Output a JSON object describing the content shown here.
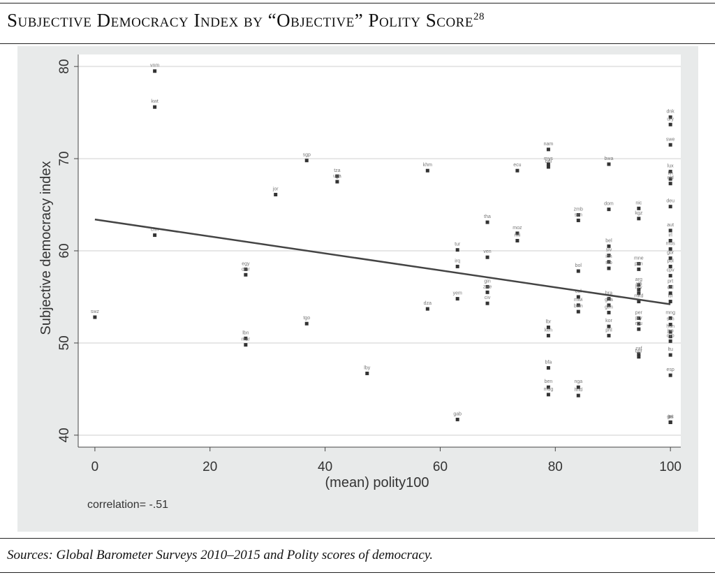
{
  "chart_data": {
    "type": "scatter",
    "title": "Subjective Democracy Index by “Objective” Polity Score",
    "footnote_mark": "28",
    "xlabel": "(mean) polity100",
    "ylabel": "Subjective democracy index",
    "annotation": "correlation= -.51",
    "source": "Sources: Global Barometer Surveys 2010–2015 and Polity scores of democracy.",
    "xlim": [
      -2.9,
      101.8
    ],
    "ylim": [
      38.7,
      81.3
    ],
    "xticks": [
      0,
      20,
      40,
      60,
      80,
      100
    ],
    "yticks": [
      40,
      50,
      60,
      70,
      80
    ],
    "grid": true,
    "color": "#333333",
    "fit": {
      "x": [
        0,
        100
      ],
      "values": [
        63.4,
        54.2
      ],
      "color": "#444444"
    },
    "labels": [
      "vnm",
      "kwt",
      "chn",
      "swz",
      "sgp",
      "tza",
      "uga",
      "jor",
      "khm",
      "egy",
      "cmr",
      "tgo",
      "lbn",
      "mar",
      "lby",
      "gab",
      "dza",
      "yem",
      "tur",
      "irq",
      "tha",
      "ven",
      "gin",
      "zwe",
      "civ",
      "moz",
      "mli",
      "ecu",
      "mys",
      "bdi",
      "nam",
      "lbr",
      "ken",
      "bfa",
      "ben",
      "mdg",
      "zmb",
      "sen",
      "bol",
      "col",
      "mwi",
      "bwn",
      "nga",
      "hnd",
      "bwa",
      "dom",
      "bel",
      "slv",
      "idn",
      "srb",
      "bra",
      "gha",
      "gtm",
      "kor",
      "phl",
      "nic",
      "kgz",
      "mne",
      "pan",
      "arg",
      "alb",
      "hrv",
      "mkd",
      "per",
      "pry",
      "rou",
      "zaf",
      "bgr",
      "dnk",
      "ury",
      "swe",
      "lux",
      "fin",
      "nld",
      "deu",
      "aut",
      "irl",
      "mus",
      "gbr",
      "pol",
      "cpv",
      "prt",
      "chl",
      "isr",
      "mng",
      "svn",
      "hun",
      "jpn",
      "cyp",
      "ltu",
      "esp",
      "cri",
      "ita",
      "grc"
    ],
    "x": [
      10.4,
      10.4,
      10.4,
      0,
      36.8,
      42.1,
      42.1,
      31.4,
      57.8,
      26.2,
      26.2,
      36.8,
      26.2,
      26.2,
      47.3,
      63.0,
      57.8,
      63.0,
      63.0,
      63.0,
      68.2,
      68.2,
      68.2,
      68.2,
      68.2,
      73.4,
      73.4,
      73.4,
      78.8,
      78.8,
      78.8,
      78.8,
      78.8,
      78.8,
      78.8,
      78.8,
      84.0,
      84.0,
      84.0,
      84.0,
      84.0,
      84.0,
      84.0,
      84.0,
      89.3,
      89.3,
      89.3,
      89.3,
      89.3,
      89.3,
      89.3,
      89.3,
      89.3,
      89.3,
      89.3,
      94.5,
      94.5,
      94.5,
      94.5,
      94.5,
      94.5,
      94.5,
      94.5,
      94.5,
      94.5,
      94.5,
      94.5,
      94.5,
      100,
      100,
      100,
      100,
      100,
      100,
      100,
      100,
      100,
      100,
      100,
      100,
      100,
      100,
      100,
      100,
      100,
      100,
      100,
      100,
      100,
      100,
      100,
      100,
      100,
      100
    ],
    "values": [
      79.5,
      75.6,
      61.7,
      52.8,
      69.8,
      68.1,
      67.5,
      66.1,
      68.7,
      58.0,
      57.4,
      52.1,
      50.5,
      49.8,
      46.7,
      41.7,
      53.7,
      54.8,
      60.1,
      58.3,
      63.1,
      59.3,
      56.1,
      55.5,
      54.3,
      61.9,
      61.1,
      68.7,
      69.4,
      69.1,
      71.0,
      51.7,
      50.8,
      47.3,
      45.2,
      44.4,
      63.9,
      63.3,
      57.8,
      55.0,
      54.1,
      53.4,
      45.2,
      44.3,
      69.4,
      64.5,
      60.5,
      59.5,
      58.8,
      58.1,
      54.8,
      54.1,
      53.3,
      51.8,
      50.8,
      64.6,
      63.5,
      58.6,
      58.0,
      56.3,
      55.8,
      55.4,
      54.5,
      52.7,
      52.1,
      51.5,
      48.8,
      48.5,
      74.5,
      73.7,
      71.5,
      68.6,
      67.8,
      67.3,
      64.8,
      62.2,
      61.1,
      60.2,
      59.2,
      58.3,
      57.3,
      56.1,
      55.4,
      54.5,
      52.7,
      52.0,
      51.2,
      50.7,
      50.2,
      48.7,
      46.5,
      41.4,
      41.4,
      41.4
    ]
  }
}
